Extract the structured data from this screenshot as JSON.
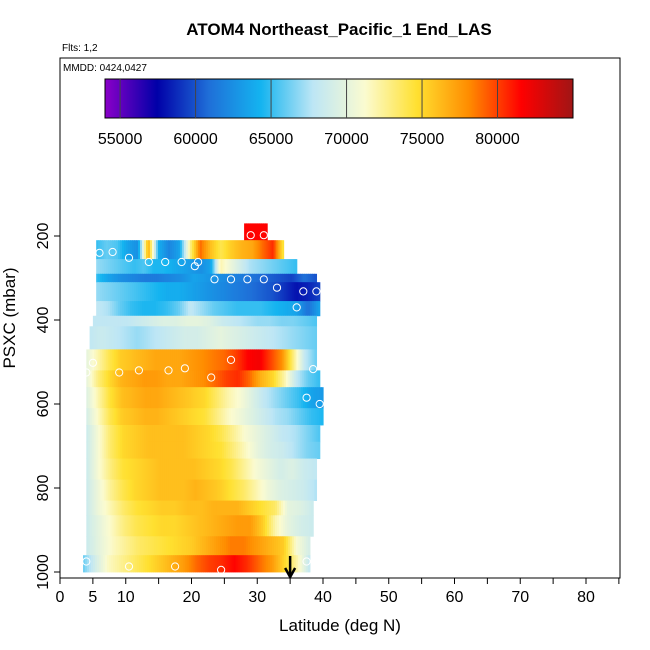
{
  "chart_data": {
    "type": "heatmap",
    "title": "ATOM4 Northeast_Pacific_1 End_LAS",
    "flights_label": "Flts: 1,2",
    "date_label": "MMDD: 0424,0427",
    "xlabel": "Latitude (deg N)",
    "ylabel": "PSXC (mbar)",
    "xlim": [
      0,
      85
    ],
    "ylim": [
      1000,
      0
    ],
    "x_ticks": [
      0,
      5,
      10,
      20,
      30,
      40,
      50,
      60,
      70,
      80
    ],
    "y_ticks": [
      200,
      400,
      600,
      800,
      1000
    ],
    "colorbar": {
      "range": [
        54000,
        85000
      ],
      "ticks": [
        55000,
        60000,
        65000,
        70000,
        75000,
        80000
      ],
      "stops": [
        "#8a00c8",
        "#0000a8",
        "#1f6fd8",
        "#14b4f0",
        "#bde6f5",
        "#fbfbd0",
        "#ffe030",
        "#ff8c00",
        "#ff0000",
        "#a01515"
      ]
    },
    "arrow_latitude": 35,
    "bands": [
      {
        "p_top": 170,
        "p_bot": 210,
        "lat_start": 28,
        "lat_end": 31.5,
        "values": [
          81500
        ]
      },
      {
        "p_top": 210,
        "p_bot": 255,
        "lat_start": 5.5,
        "lat_end": 34,
        "values": [
          65000,
          66000,
          65500,
          63500,
          62500,
          77000,
          64000,
          62000,
          63500,
          72500,
          79000,
          76000,
          74000,
          75500,
          76500,
          77000,
          79000,
          80500,
          74000
        ]
      },
      {
        "p_top": 255,
        "p_bot": 290,
        "lat_start": 5.5,
        "lat_end": 36,
        "values": [
          67000,
          66500,
          66000,
          65500,
          65000,
          65500,
          64500,
          64500,
          64000,
          63500,
          63000,
          62500,
          63500,
          72000,
          70500,
          69000,
          67500,
          67000,
          66500,
          66000,
          65500,
          65000
        ]
      },
      {
        "p_top": 290,
        "p_bot": 310,
        "lat_start": 5.5,
        "lat_end": 39,
        "values": [
          65000,
          63500,
          62500,
          62000,
          61500,
          61500,
          62000,
          62500,
          63500,
          63000,
          62500,
          62000,
          61500,
          61000,
          60500,
          60000,
          59500,
          61000,
          60000
        ]
      },
      {
        "p_top": 310,
        "p_bot": 355,
        "lat_start": 5.5,
        "lat_end": 39.5,
        "values": [
          67000,
          66500,
          66000,
          65500,
          65000,
          64500,
          64000,
          64000,
          63500,
          63000,
          62500,
          62000,
          61500,
          61000,
          60500,
          60000,
          59000,
          58000,
          58500,
          59500
        ]
      },
      {
        "p_top": 355,
        "p_bot": 390,
        "lat_start": 5.5,
        "lat_end": 39.5,
        "values": [
          68000,
          67500,
          66000,
          65000,
          64500,
          64500,
          65000,
          66000,
          68000,
          67000,
          66000,
          65500,
          65000,
          65000,
          65000,
          64500,
          64000,
          63500,
          61000,
          63500
        ]
      },
      {
        "p_top": 390,
        "p_bot": 415,
        "lat_start": 5,
        "lat_end": 39,
        "values": [
          68000,
          68000,
          68000,
          68000,
          68500,
          69000,
          69500,
          69500,
          70000,
          70000,
          69500,
          68500,
          68000,
          67500,
          67000,
          67000,
          66500,
          66500,
          66000,
          65500
        ]
      },
      {
        "p_top": 415,
        "p_bot": 470,
        "lat_start": 4.5,
        "lat_end": 39,
        "values": [
          68000,
          68500,
          68000,
          67500,
          67000,
          67500,
          68000,
          68500,
          69000,
          69000,
          69500,
          70000,
          69500,
          69000,
          68500,
          68000,
          67500,
          67000,
          66500,
          66000
        ]
      },
      {
        "p_top": 470,
        "p_bot": 520,
        "lat_start": 4,
        "lat_end": 39,
        "values": [
          70000,
          72000,
          74000,
          75500,
          76000,
          76500,
          77000,
          77000,
          77000,
          77500,
          78000,
          78500,
          79000,
          80000,
          81500,
          82000,
          80000,
          78000,
          73000,
          68000,
          66000
        ]
      },
      {
        "p_top": 520,
        "p_bot": 560,
        "lat_start": 4,
        "lat_end": 39.5,
        "values": [
          70000,
          73000,
          75000,
          76500,
          77000,
          77500,
          77500,
          77000,
          77000,
          77500,
          78000,
          79000,
          80000,
          80500,
          79000,
          76500,
          75000,
          72000,
          68000,
          66000,
          65000
        ]
      },
      {
        "p_top": 560,
        "p_bot": 610,
        "lat_start": 4,
        "lat_end": 40,
        "values": [
          69500,
          72000,
          74500,
          76000,
          76500,
          77000,
          77000,
          76500,
          76000,
          75500,
          75000,
          73500,
          72000,
          71000,
          69500,
          68000,
          67000,
          66000,
          65000,
          63500,
          63000
        ]
      },
      {
        "p_top": 610,
        "p_bot": 650,
        "lat_start": 4,
        "lat_end": 40,
        "values": [
          69000,
          71500,
          74000,
          75500,
          76000,
          76500,
          76500,
          76000,
          75500,
          75000,
          74500,
          73000,
          71500,
          70500,
          69500,
          68500,
          67500,
          67000,
          66000,
          65000,
          64500
        ]
      },
      {
        "p_top": 650,
        "p_bot": 690,
        "lat_start": 4,
        "lat_end": 39.5,
        "values": [
          68500,
          71000,
          73500,
          75000,
          75500,
          76000,
          76000,
          76000,
          76000,
          75500,
          75000,
          74000,
          72500,
          71000,
          70000,
          69000,
          68000,
          67500,
          66500,
          65500
        ]
      },
      {
        "p_top": 690,
        "p_bot": 730,
        "lat_start": 4,
        "lat_end": 39.5,
        "values": [
          68500,
          71000,
          73500,
          75000,
          75500,
          76000,
          76000,
          76000,
          76000,
          75500,
          75000,
          74500,
          73000,
          71500,
          70000,
          69000,
          68500,
          67500,
          66500,
          66000
        ]
      },
      {
        "p_top": 730,
        "p_bot": 780,
        "lat_start": 4,
        "lat_end": 39,
        "values": [
          68500,
          71000,
          73000,
          74500,
          75000,
          75500,
          76000,
          76000,
          76000,
          76000,
          75500,
          75000,
          74000,
          72500,
          71000,
          70000,
          69000,
          69500,
          68500,
          68000
        ]
      },
      {
        "p_top": 780,
        "p_bot": 830,
        "lat_start": 4,
        "lat_end": 39,
        "values": [
          68500,
          70500,
          72500,
          74000,
          75000,
          75500,
          76000,
          76000,
          76000,
          76500,
          76000,
          75500,
          74500,
          73500,
          72000,
          70500,
          69500,
          69000,
          68500,
          67500
        ]
      },
      {
        "p_top": 830,
        "p_bot": 865,
        "lat_start": 4,
        "lat_end": 38.5,
        "values": [
          68500,
          70500,
          72000,
          73500,
          74500,
          75000,
          75500,
          75500,
          76000,
          76000,
          76500,
          76500,
          76500,
          75500,
          74500,
          73500,
          70000,
          69500,
          68500
        ]
      },
      {
        "p_top": 865,
        "p_bot": 915,
        "lat_start": 4,
        "lat_end": 38.5,
        "values": [
          68500,
          70000,
          71500,
          73000,
          74000,
          74500,
          75000,
          75000,
          75500,
          76000,
          76500,
          77000,
          77500,
          77500,
          75500,
          72000,
          70000,
          69000,
          68500
        ]
      },
      {
        "p_top": 915,
        "p_bot": 960,
        "lat_start": 4,
        "lat_end": 38,
        "values": [
          68500,
          70000,
          71500,
          72500,
          73500,
          74000,
          74500,
          75000,
          75500,
          76500,
          77500,
          78500,
          78500,
          77500,
          76500,
          75500,
          71000,
          69000
        ]
      },
      {
        "p_top": 960,
        "p_bot": 1000,
        "lat_start": 3.5,
        "lat_end": 38,
        "values": [
          66000,
          69000,
          71500,
          72500,
          73500,
          74500,
          75500,
          76500,
          77500,
          79000,
          80000,
          80500,
          81500,
          80500,
          79000,
          77500,
          75000,
          72000,
          68000
        ]
      }
    ],
    "points": [
      {
        "lat": 29,
        "p": 198
      },
      {
        "lat": 31,
        "p": 198
      },
      {
        "lat": 6,
        "p": 240
      },
      {
        "lat": 8,
        "p": 238
      },
      {
        "lat": 10.5,
        "p": 252
      },
      {
        "lat": 13.5,
        "p": 262
      },
      {
        "lat": 16,
        "p": 262
      },
      {
        "lat": 18.5,
        "p": 262
      },
      {
        "lat": 21,
        "p": 262
      },
      {
        "lat": 20.5,
        "p": 272
      },
      {
        "lat": 23.5,
        "p": 303
      },
      {
        "lat": 26,
        "p": 303
      },
      {
        "lat": 28.5,
        "p": 303
      },
      {
        "lat": 31,
        "p": 303
      },
      {
        "lat": 33,
        "p": 323
      },
      {
        "lat": 37,
        "p": 332
      },
      {
        "lat": 39,
        "p": 332
      },
      {
        "lat": 36,
        "p": 370
      },
      {
        "lat": 5,
        "p": 502
      },
      {
        "lat": 26,
        "p": 495
      },
      {
        "lat": 4,
        "p": 525
      },
      {
        "lat": 9,
        "p": 525
      },
      {
        "lat": 12,
        "p": 520
      },
      {
        "lat": 16.5,
        "p": 520
      },
      {
        "lat": 19,
        "p": 515
      },
      {
        "lat": 23,
        "p": 537
      },
      {
        "lat": 38.5,
        "p": 517
      },
      {
        "lat": 37.5,
        "p": 585
      },
      {
        "lat": 39.5,
        "p": 600
      },
      {
        "lat": 4,
        "p": 975
      },
      {
        "lat": 10.5,
        "p": 987
      },
      {
        "lat": 17.5,
        "p": 987
      },
      {
        "lat": 24.5,
        "p": 995
      },
      {
        "lat": 37.5,
        "p": 975
      }
    ]
  }
}
